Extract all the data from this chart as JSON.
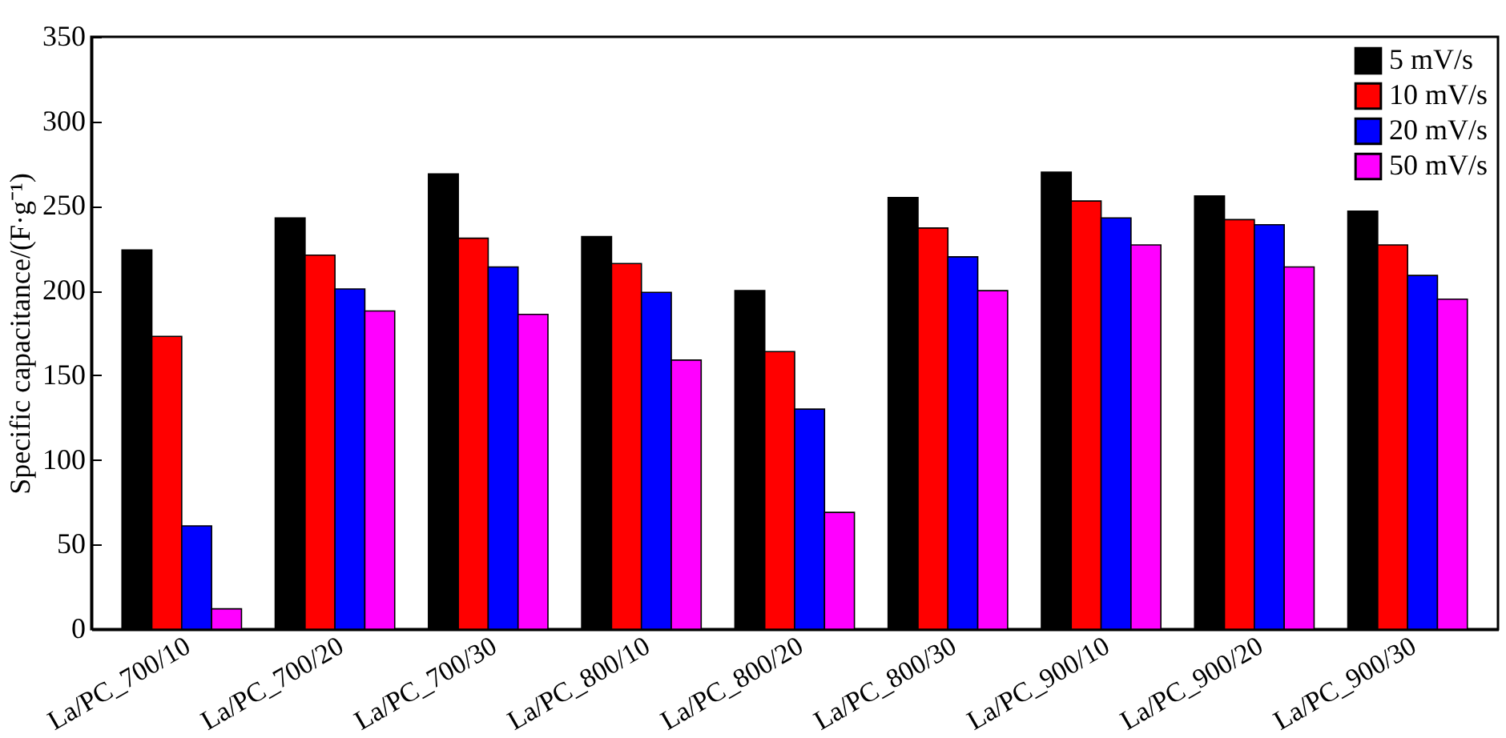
{
  "chart_data": {
    "type": "bar",
    "ylabel": "Specific capacitance/(F·g⁻¹)",
    "categories": [
      "La/PC_700/10",
      "La/PC_700/20",
      "La/PC_700/30",
      "La/PC_800/10",
      "La/PC_800/20",
      "La/PC_800/30",
      "La/PC_900/10",
      "La/PC_900/20",
      "La/PC_900/30"
    ],
    "series": [
      {
        "name": "5 mV/s",
        "color": "#000000",
        "values": [
          224,
          243,
          269,
          232,
          200,
          255,
          270,
          256,
          247
        ]
      },
      {
        "name": "10 mV/s",
        "color": "#ff0000",
        "values": [
          173,
          221,
          231,
          216,
          164,
          237,
          253,
          242,
          227
        ]
      },
      {
        "name": "20 mV/s",
        "color": "#0000ff",
        "values": [
          61,
          201,
          214,
          199,
          130,
          220,
          243,
          239,
          209
        ]
      },
      {
        "name": "50 mV/s",
        "color": "#ff00ff",
        "values": [
          12,
          188,
          186,
          159,
          69,
          200,
          227,
          214,
          195
        ]
      }
    ],
    "ylim": [
      0,
      350
    ],
    "yticks": [
      0,
      50,
      100,
      150,
      200,
      250,
      300,
      350
    ],
    "legend": "top right",
    "grid": false
  }
}
